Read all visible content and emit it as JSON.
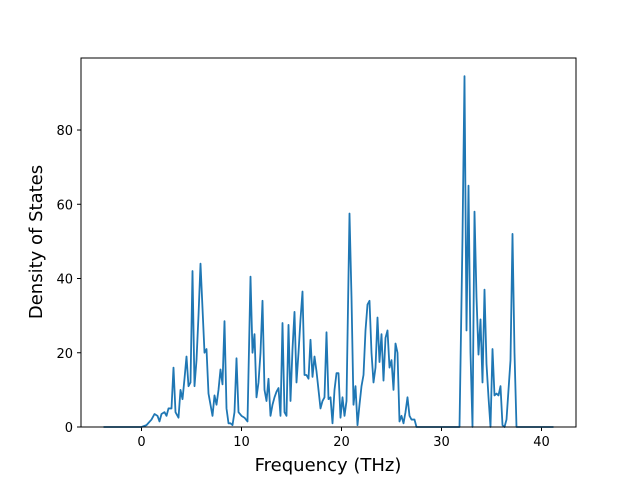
{
  "chart_data": {
    "type": "line",
    "xlabel": "Frequency (THz)",
    "ylabel": "Density of States",
    "xlim": [
      -6.05,
      43.45
    ],
    "ylim": [
      0,
      99.4
    ],
    "xticks": [
      0,
      10,
      20,
      30,
      40
    ],
    "yticks": [
      0,
      20,
      40,
      60,
      80
    ],
    "series": [
      {
        "color": "#1f77b4",
        "x": [
          -3.8,
          0,
          0.5,
          1,
          1.3,
          1.6,
          1.8,
          2.0,
          2.3,
          2.5,
          2.7,
          3.0,
          3.2,
          3.4,
          3.7,
          3.9,
          4.1,
          4.3,
          4.5,
          4.7,
          4.9,
          5.1,
          5.3,
          5.5,
          5.7,
          5.9,
          6.1,
          6.3,
          6.5,
          6.7,
          6.9,
          7.1,
          7.3,
          7.5,
          7.7,
          7.9,
          8.1,
          8.3,
          8.5,
          8.7,
          8.9,
          9.1,
          9.3,
          9.5,
          9.7,
          10.0,
          10.3,
          10.6,
          10.9,
          11.1,
          11.3,
          11.5,
          11.7,
          11.9,
          12.1,
          12.3,
          12.5,
          12.7,
          12.9,
          13.1,
          13.3,
          13.5,
          13.7,
          13.9,
          14.1,
          14.3,
          14.5,
          14.7,
          14.9,
          15.1,
          15.3,
          15.5,
          15.7,
          15.9,
          16.1,
          16.3,
          16.5,
          16.7,
          16.9,
          17.1,
          17.3,
          17.5,
          17.7,
          17.9,
          18.1,
          18.3,
          18.5,
          18.7,
          18.9,
          19.1,
          19.3,
          19.5,
          19.7,
          19.9,
          20.1,
          20.3,
          20.5,
          20.8,
          21.0,
          21.2,
          21.4,
          21.6,
          21.8,
          22.0,
          22.2,
          22.4,
          22.6,
          22.8,
          23.0,
          23.2,
          23.4,
          23.6,
          23.8,
          24.0,
          24.2,
          24.4,
          24.6,
          24.8,
          25.0,
          25.2,
          25.4,
          25.6,
          25.8,
          26.0,
          26.2,
          26.4,
          26.6,
          26.8,
          27.0,
          27.3,
          27.5,
          31.0,
          31.8,
          32.1,
          32.3,
          32.5,
          32.7,
          32.9,
          33.1,
          33.3,
          33.5,
          33.7,
          33.9,
          34.1,
          34.3,
          34.5,
          34.7,
          34.9,
          35.1,
          35.3,
          35.5,
          35.7,
          35.9,
          36.1,
          36.3,
          36.5,
          36.9,
          37.1,
          37.3,
          37.5,
          41.2
        ],
        "values": [
          0,
          0,
          0.5,
          2,
          3.5,
          3,
          1.5,
          3.5,
          4,
          3,
          5,
          5,
          16,
          4,
          2.5,
          10,
          7.5,
          13,
          19,
          11,
          12,
          42,
          11,
          18,
          30,
          44,
          32,
          20,
          21,
          9,
          6,
          3,
          8.5,
          6,
          10,
          15.5,
          11.5,
          28.5,
          5,
          1,
          1,
          0.5,
          4,
          18.5,
          4,
          3,
          2.5,
          1.5,
          40.5,
          20,
          25,
          8,
          12,
          20,
          34,
          10,
          7,
          13,
          3,
          6,
          8,
          9.5,
          10.5,
          3,
          28,
          4,
          3,
          27.5,
          7,
          21,
          31,
          12,
          20,
          29,
          36.5,
          14,
          14,
          13,
          23.5,
          13.5,
          19,
          15,
          10,
          5,
          7,
          8,
          25.5,
          7.5,
          8,
          1,
          10,
          14.5,
          14.5,
          2.5,
          8,
          3,
          7,
          57.5,
          35,
          6,
          11,
          0.5,
          6,
          11,
          14,
          26,
          33,
          34,
          20,
          12,
          16,
          29.5,
          17.5,
          25,
          12.5,
          24,
          26,
          16,
          18,
          10,
          22.5,
          20,
          1.5,
          3,
          1,
          4,
          8,
          3,
          2,
          2,
          0,
          0,
          0,
          51,
          94.5,
          26,
          65,
          20,
          0,
          58,
          35,
          19.5,
          29,
          12,
          37,
          17,
          8,
          0,
          21,
          8.5,
          9,
          8.5,
          11,
          0.5,
          0,
          2,
          18,
          52,
          20,
          0,
          0
        ]
      }
    ]
  }
}
